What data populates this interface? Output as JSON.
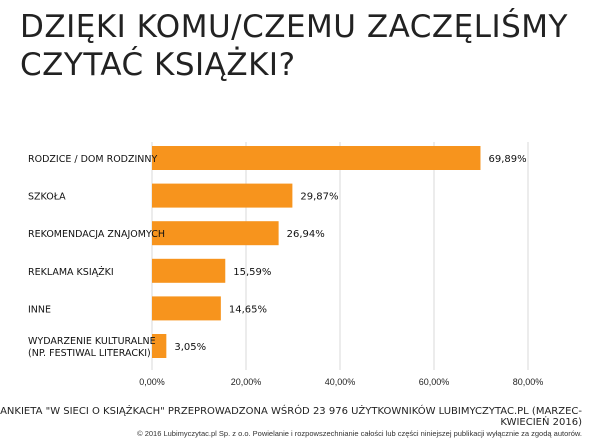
{
  "title_line1": "DZIĘKI KOMU/CZEMU ZACZĘLIŚMY",
  "title_line2": "CZYTAĆ KSIĄŻKI?",
  "chart_data": {
    "type": "bar",
    "orientation": "horizontal",
    "categories": [
      "RODZICE / DOM RODZINNY",
      "SZKOŁA",
      "REKOMENDACJA ZNAJOMYCH",
      "REKLAMA KSIĄŻKI",
      "INNE",
      "WYDARZENIE KULTURALNE (NP. FESTIWAL LITERACKI)"
    ],
    "category_lines": [
      [
        "RODZICE / DOM RODZINNY"
      ],
      [
        "SZKOŁA"
      ],
      [
        "REKOMENDACJA ZNAJOMYCH"
      ],
      [
        "REKLAMA KSIĄŻKI"
      ],
      [
        "INNE"
      ],
      [
        "WYDARZENIE KULTURALNE",
        "(NP. FESTIWAL LITERACKI)"
      ]
    ],
    "values": [
      69.89,
      29.87,
      26.94,
      15.59,
      14.65,
      3.05
    ],
    "value_labels": [
      "69,89%",
      "29,87%",
      "26,94%",
      "15,59%",
      "14,65%",
      "3,05%"
    ],
    "xlim": [
      0,
      80
    ],
    "x_ticks": [
      0,
      20,
      40,
      60,
      80
    ],
    "x_tick_labels": [
      "0,00%",
      "20,00%",
      "40,00%",
      "60,00%",
      "80,00%"
    ],
    "grid": true,
    "bar_color": "#F7941D",
    "title": "",
    "xlabel": "",
    "ylabel": ""
  },
  "footnote_survey": "ANKIETA \"W SIECI O KSIĄŻKACH\" PRZEPROWADZONA WŚRÓD 23 976 UŻYTKOWNIKÓW LUBIMYCZYTAC.PL  (MARZEC-KWIECIEŃ 2016)",
  "footnote_copyright": "© 2016 Lubimyczytac.pl Sp. z o.o. Powielanie i rozpowszechnianie  całości lub części niniejszej publikacji wyłącznie za zgodą autorów."
}
